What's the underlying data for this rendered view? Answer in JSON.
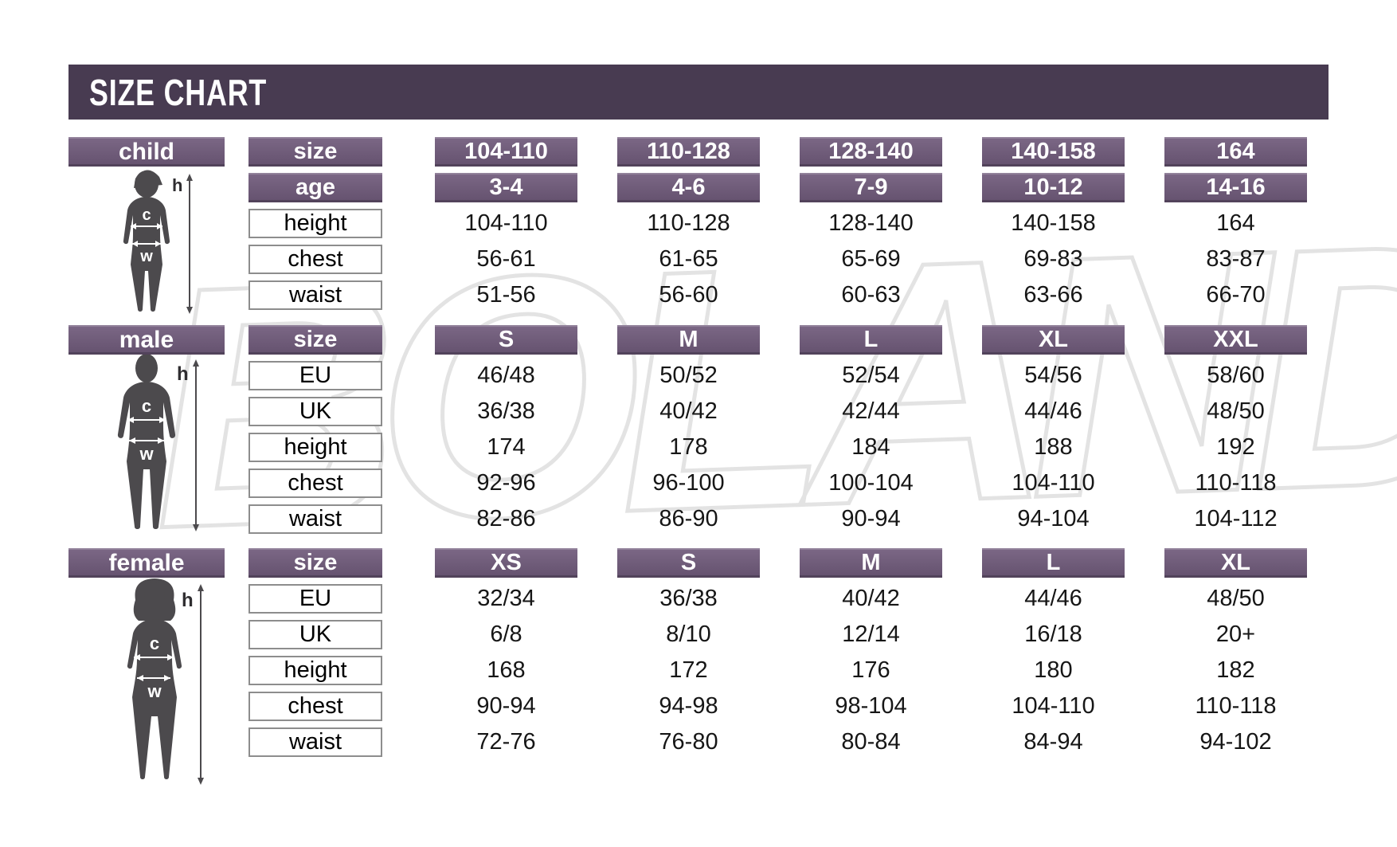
{
  "title": "SIZE CHART",
  "watermark": "BOLAND",
  "figure_labels": {
    "height": "h",
    "chest": "c",
    "waist": "w"
  },
  "colors": {
    "banner_purple": "#483b51",
    "header_purple": "#6d5975",
    "cell_gray": "#c9c9c9",
    "cell_gray_light": "#eaeaea",
    "silhouette_gray": "#4c4a4d"
  },
  "chart_data": [
    {
      "type": "table",
      "group": "child",
      "rows": [
        {
          "label": "size",
          "header": true,
          "values": [
            "104-110",
            "110-128",
            "128-140",
            "140-158",
            "164"
          ]
        },
        {
          "label": "age",
          "header": true,
          "values": [
            "3-4",
            "4-6",
            "7-9",
            "10-12",
            "14-16"
          ]
        },
        {
          "label": "height",
          "header": false,
          "values": [
            "104-110",
            "110-128",
            "128-140",
            "140-158",
            "164"
          ]
        },
        {
          "label": "chest",
          "header": false,
          "values": [
            "56-61",
            "61-65",
            "65-69",
            "69-83",
            "83-87"
          ]
        },
        {
          "label": "waist",
          "header": false,
          "values": [
            "51-56",
            "56-60",
            "60-63",
            "63-66",
            "66-70"
          ]
        }
      ]
    },
    {
      "type": "table",
      "group": "male",
      "rows": [
        {
          "label": "size",
          "header": true,
          "values": [
            "S",
            "M",
            "L",
            "XL",
            "XXL"
          ]
        },
        {
          "label": "EU",
          "header": false,
          "values": [
            "46/48",
            "50/52",
            "52/54",
            "54/56",
            "58/60"
          ]
        },
        {
          "label": "UK",
          "header": false,
          "values": [
            "36/38",
            "40/42",
            "42/44",
            "44/46",
            "48/50"
          ]
        },
        {
          "label": "height",
          "header": false,
          "values": [
            "174",
            "178",
            "184",
            "188",
            "192"
          ]
        },
        {
          "label": "chest",
          "header": false,
          "values": [
            "92-96",
            "96-100",
            "100-104",
            "104-110",
            "110-118"
          ]
        },
        {
          "label": "waist",
          "header": false,
          "values": [
            "82-86",
            "86-90",
            "90-94",
            "94-104",
            "104-112"
          ]
        }
      ]
    },
    {
      "type": "table",
      "group": "female",
      "rows": [
        {
          "label": "size",
          "header": true,
          "values": [
            "XS",
            "S",
            "M",
            "L",
            "XL"
          ]
        },
        {
          "label": "EU",
          "header": false,
          "values": [
            "32/34",
            "36/38",
            "40/42",
            "44/46",
            "48/50"
          ]
        },
        {
          "label": "UK",
          "header": false,
          "values": [
            "6/8",
            "8/10",
            "12/14",
            "16/18",
            "20+"
          ]
        },
        {
          "label": "height",
          "header": false,
          "values": [
            "168",
            "172",
            "176",
            "180",
            "182"
          ]
        },
        {
          "label": "chest",
          "header": false,
          "values": [
            "90-94",
            "94-98",
            "98-104",
            "104-110",
            "110-118"
          ]
        },
        {
          "label": "waist",
          "header": false,
          "values": [
            "72-76",
            "76-80",
            "80-84",
            "84-94",
            "94-102"
          ]
        }
      ]
    }
  ]
}
